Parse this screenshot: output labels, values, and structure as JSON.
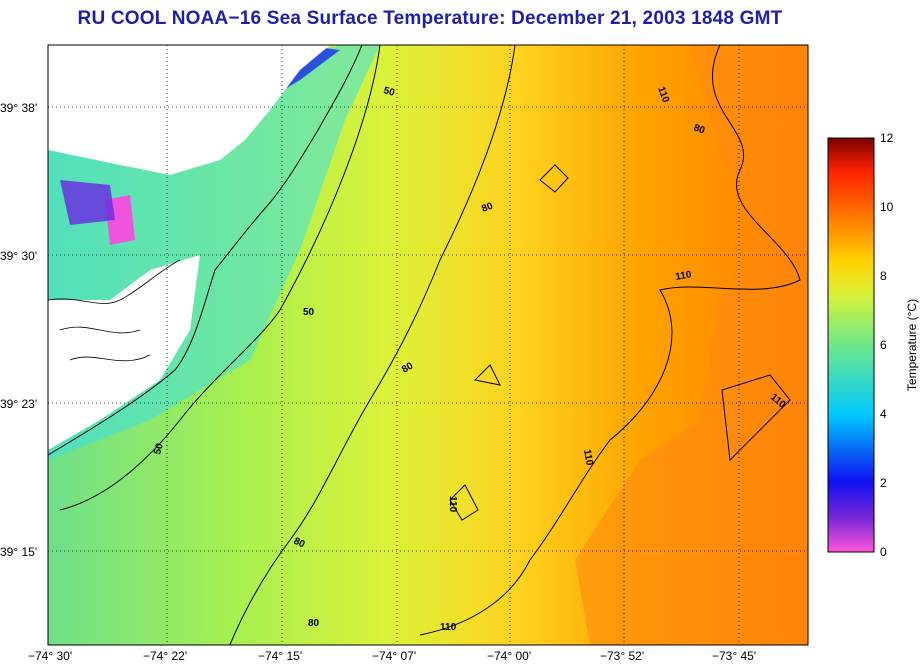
{
  "title": "RU COOL  NOAA−16  Sea Surface Temperature:  December 21, 2003 1848 GMT",
  "lat_labels": [
    {
      "text": "39° 38'",
      "lat": 39.6333
    },
    {
      "text": "39° 30'",
      "lat": 39.5
    },
    {
      "text": "39° 23'",
      "lat": 39.3833
    },
    {
      "text": "39° 15'",
      "lat": 39.25
    }
  ],
  "lon_labels": [
    {
      "text": "−74° 30'",
      "lon": -74.5
    },
    {
      "text": "−74° 22'",
      "lon": -74.3667
    },
    {
      "text": "−74° 15'",
      "lon": -74.25
    },
    {
      "text": "−74° 07'",
      "lon": -74.1167
    },
    {
      "text": "−74° 00'",
      "lon": -74.0
    },
    {
      "text": "−73° 52'",
      "lon": -73.8667
    },
    {
      "text": "−73° 45'",
      "lon": -73.75
    }
  ],
  "colorbar": {
    "label": "Temperature (°C)",
    "ticks": [
      "0",
      "2",
      "4",
      "6",
      "8",
      "10",
      "12"
    ],
    "min": 0,
    "max": 12,
    "colors": [
      "#ff55d8",
      "#7a28d8",
      "#1010f0",
      "#00c8ff",
      "#b8ff40",
      "#ffd400",
      "#ff8000",
      "#ff2000",
      "#7a0000"
    ]
  },
  "contour_labels": [
    {
      "text": "50"
    },
    {
      "text": "50"
    },
    {
      "text": "50"
    },
    {
      "text": "80"
    },
    {
      "text": "80"
    },
    {
      "text": "80"
    },
    {
      "text": "80"
    },
    {
      "text": "80"
    },
    {
      "text": "110"
    },
    {
      "text": "110"
    },
    {
      "text": "110"
    },
    {
      "text": "110"
    },
    {
      "text": "110"
    },
    {
      "text": "110"
    }
  ],
  "colors": {
    "title": "#1f1fa8",
    "land": "#ffffff",
    "contour": "#000000"
  }
}
